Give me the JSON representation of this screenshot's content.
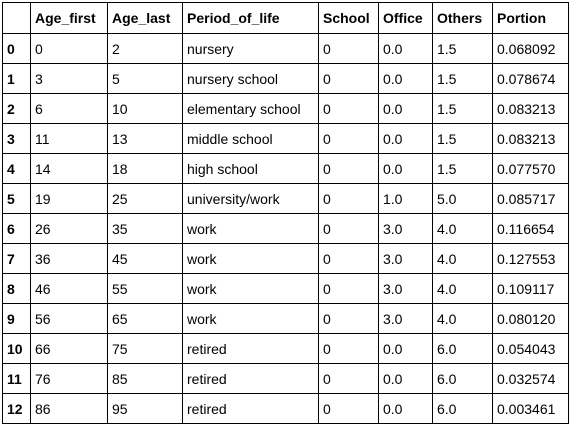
{
  "dataframe": {
    "index_header": "",
    "columns": [
      "Age_first",
      "Age_last",
      "Period_of_life",
      "School",
      "Office",
      "Others",
      "Portion"
    ],
    "rows": [
      {
        "index": "0",
        "cells": [
          "0",
          "2",
          "nursery",
          "0",
          "0.0",
          "1.5",
          "0.068092"
        ]
      },
      {
        "index": "1",
        "cells": [
          "3",
          "5",
          "nursery school",
          "0",
          "0.0",
          "1.5",
          "0.078674"
        ]
      },
      {
        "index": "2",
        "cells": [
          "6",
          "10",
          "elementary school",
          "0",
          "0.0",
          "1.5",
          "0.083213"
        ]
      },
      {
        "index": "3",
        "cells": [
          "11",
          "13",
          "middle school",
          "0",
          "0.0",
          "1.5",
          "0.083213"
        ]
      },
      {
        "index": "4",
        "cells": [
          "14",
          "18",
          "high school",
          "0",
          "0.0",
          "1.5",
          "0.077570"
        ]
      },
      {
        "index": "5",
        "cells": [
          "19",
          "25",
          "university/work",
          "0",
          "1.0",
          "5.0",
          "0.085717"
        ]
      },
      {
        "index": "6",
        "cells": [
          "26",
          "35",
          "work",
          "0",
          "3.0",
          "4.0",
          "0.116654"
        ]
      },
      {
        "index": "7",
        "cells": [
          "36",
          "45",
          "work",
          "0",
          "3.0",
          "4.0",
          "0.127553"
        ]
      },
      {
        "index": "8",
        "cells": [
          "46",
          "55",
          "work",
          "0",
          "3.0",
          "4.0",
          "0.109117"
        ]
      },
      {
        "index": "9",
        "cells": [
          "56",
          "65",
          "work",
          "0",
          "3.0",
          "4.0",
          "0.080120"
        ]
      },
      {
        "index": "10",
        "cells": [
          "66",
          "75",
          "retired",
          "0",
          "0.0",
          "6.0",
          "0.054043"
        ]
      },
      {
        "index": "11",
        "cells": [
          "76",
          "85",
          "retired",
          "0",
          "0.0",
          "6.0",
          "0.032574"
        ]
      },
      {
        "index": "12",
        "cells": [
          "86",
          "95",
          "retired",
          "0",
          "0.0",
          "6.0",
          "0.003461"
        ]
      }
    ]
  }
}
